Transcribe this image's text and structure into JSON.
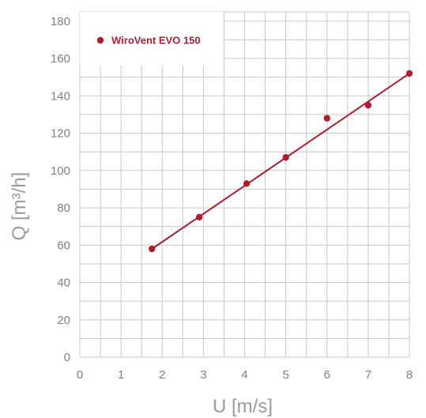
{
  "colors": {
    "series": "#b01e2e",
    "grid": "#c8c8c8",
    "tick_text": "#808080",
    "axis_title": "#9a9a9a"
  },
  "chart_data": {
    "type": "scatter",
    "xlabel": "U [m/s]",
    "ylabel": "Q [m³/h]",
    "xlim": [
      0,
      8
    ],
    "ylim": [
      0,
      185
    ],
    "x_ticks": [
      0,
      1,
      2,
      3,
      4,
      5,
      6,
      7,
      8
    ],
    "y_ticks": [
      0,
      20,
      40,
      60,
      80,
      100,
      120,
      140,
      160,
      180
    ],
    "grid": true,
    "legend_position": "top-left",
    "series": [
      {
        "name": "WiroVent EVO 150",
        "color": "#b01e2e",
        "points": [
          {
            "x": 1.75,
            "y": 58
          },
          {
            "x": 2.9,
            "y": 75
          },
          {
            "x": 4.05,
            "y": 93
          },
          {
            "x": 5.0,
            "y": 107
          },
          {
            "x": 6.0,
            "y": 128
          },
          {
            "x": 7.0,
            "y": 135
          },
          {
            "x": 8.0,
            "y": 152
          }
        ],
        "trendline": {
          "x": [
            1.75,
            8.0
          ],
          "y": [
            58,
            152
          ]
        }
      }
    ]
  }
}
